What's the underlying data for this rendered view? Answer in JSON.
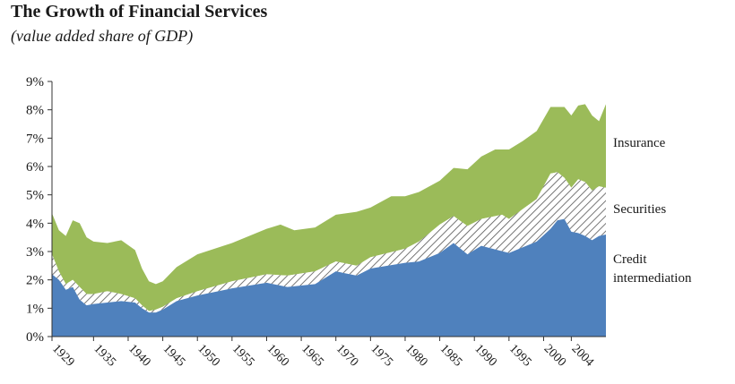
{
  "chart_data": {
    "type": "area",
    "title": "The Growth of Financial Services",
    "subtitle": "(value added share of GDP)",
    "xlabel": "",
    "ylabel": "",
    "ylim": [
      0,
      9
    ],
    "xlim": [
      1929,
      2009
    ],
    "y_ticks": [
      "0%",
      "1%",
      "2%",
      "3%",
      "4%",
      "5%",
      "6%",
      "7%",
      "8%",
      "9%"
    ],
    "x_ticks": [
      1929,
      1935,
      1940,
      1945,
      1950,
      1955,
      1960,
      1965,
      1970,
      1975,
      1980,
      1985,
      1990,
      1995,
      2000,
      2004
    ],
    "stacked": true,
    "grid": false,
    "legend_placement": "right, labels beside areas",
    "colors": {
      "credit": "#4f81bd",
      "securities_hatch": "#555555",
      "insurance": "#9bbb59",
      "axis": "#333333"
    },
    "series": [
      {
        "name": "Credit intermediation",
        "label_lines": [
          "Credit",
          "intermediation"
        ],
        "points": [
          [
            1929,
            2.2
          ],
          [
            1930,
            2.0
          ],
          [
            1931,
            1.65
          ],
          [
            1932,
            1.75
          ],
          [
            1933,
            1.3
          ],
          [
            1934,
            1.1
          ],
          [
            1935,
            1.15
          ],
          [
            1937,
            1.2
          ],
          [
            1939,
            1.25
          ],
          [
            1941,
            1.2
          ],
          [
            1942,
            1.0
          ],
          [
            1943,
            0.85
          ],
          [
            1944,
            0.85
          ],
          [
            1945,
            0.95
          ],
          [
            1947,
            1.25
          ],
          [
            1950,
            1.45
          ],
          [
            1955,
            1.7
          ],
          [
            1960,
            1.9
          ],
          [
            1963,
            1.75
          ],
          [
            1967,
            1.85
          ],
          [
            1970,
            2.3
          ],
          [
            1973,
            2.15
          ],
          [
            1975,
            2.4
          ],
          [
            1980,
            2.6
          ],
          [
            1982,
            2.65
          ],
          [
            1985,
            2.95
          ],
          [
            1987,
            3.3
          ],
          [
            1989,
            2.9
          ],
          [
            1991,
            3.2
          ],
          [
            1995,
            2.95
          ],
          [
            1999,
            3.35
          ],
          [
            2001,
            3.8
          ],
          [
            2002,
            4.1
          ],
          [
            2003,
            4.15
          ],
          [
            2004,
            3.7
          ],
          [
            2005,
            3.65
          ],
          [
            2006,
            3.55
          ],
          [
            2007,
            3.4
          ],
          [
            2008,
            3.55
          ],
          [
            2009,
            3.6
          ]
        ]
      },
      {
        "name": "Securities",
        "points": [
          [
            1929,
            2.9
          ],
          [
            1930,
            2.3
          ],
          [
            1931,
            1.85
          ],
          [
            1932,
            2.0
          ],
          [
            1933,
            1.75
          ],
          [
            1934,
            1.5
          ],
          [
            1935,
            1.5
          ],
          [
            1937,
            1.6
          ],
          [
            1939,
            1.5
          ],
          [
            1941,
            1.35
          ],
          [
            1942,
            1.1
          ],
          [
            1943,
            0.9
          ],
          [
            1944,
            0.95
          ],
          [
            1945,
            1.05
          ],
          [
            1947,
            1.35
          ],
          [
            1950,
            1.6
          ],
          [
            1955,
            1.95
          ],
          [
            1960,
            2.2
          ],
          [
            1963,
            2.15
          ],
          [
            1967,
            2.3
          ],
          [
            1970,
            2.65
          ],
          [
            1973,
            2.5
          ],
          [
            1975,
            2.8
          ],
          [
            1980,
            3.1
          ],
          [
            1982,
            3.35
          ],
          [
            1985,
            3.95
          ],
          [
            1987,
            4.25
          ],
          [
            1989,
            3.9
          ],
          [
            1991,
            4.15
          ],
          [
            1994,
            4.3
          ],
          [
            1995,
            4.15
          ],
          [
            1999,
            4.85
          ],
          [
            2001,
            5.75
          ],
          [
            2002,
            5.8
          ],
          [
            2003,
            5.6
          ],
          [
            2004,
            5.25
          ],
          [
            2005,
            5.55
          ],
          [
            2006,
            5.45
          ],
          [
            2007,
            5.15
          ],
          [
            2008,
            5.3
          ],
          [
            2009,
            5.25
          ]
        ]
      },
      {
        "name": "Insurance",
        "points": [
          [
            1929,
            4.35
          ],
          [
            1930,
            3.75
          ],
          [
            1931,
            3.55
          ],
          [
            1932,
            4.1
          ],
          [
            1933,
            4.0
          ],
          [
            1934,
            3.5
          ],
          [
            1935,
            3.35
          ],
          [
            1937,
            3.3
          ],
          [
            1939,
            3.4
          ],
          [
            1941,
            3.05
          ],
          [
            1942,
            2.4
          ],
          [
            1943,
            1.95
          ],
          [
            1944,
            1.85
          ],
          [
            1945,
            1.95
          ],
          [
            1947,
            2.45
          ],
          [
            1950,
            2.9
          ],
          [
            1955,
            3.3
          ],
          [
            1960,
            3.8
          ],
          [
            1962,
            3.95
          ],
          [
            1964,
            3.75
          ],
          [
            1967,
            3.85
          ],
          [
            1970,
            4.3
          ],
          [
            1973,
            4.4
          ],
          [
            1975,
            4.55
          ],
          [
            1978,
            4.95
          ],
          [
            1980,
            4.95
          ],
          [
            1982,
            5.1
          ],
          [
            1985,
            5.5
          ],
          [
            1987,
            5.95
          ],
          [
            1989,
            5.9
          ],
          [
            1991,
            6.35
          ],
          [
            1993,
            6.6
          ],
          [
            1995,
            6.6
          ],
          [
            1997,
            6.9
          ],
          [
            1999,
            7.25
          ],
          [
            2001,
            8.1
          ],
          [
            2003,
            8.1
          ],
          [
            2004,
            7.8
          ],
          [
            2005,
            8.15
          ],
          [
            2006,
            8.2
          ],
          [
            2007,
            7.8
          ],
          [
            2008,
            7.6
          ],
          [
            2009,
            8.2
          ]
        ]
      }
    ]
  }
}
